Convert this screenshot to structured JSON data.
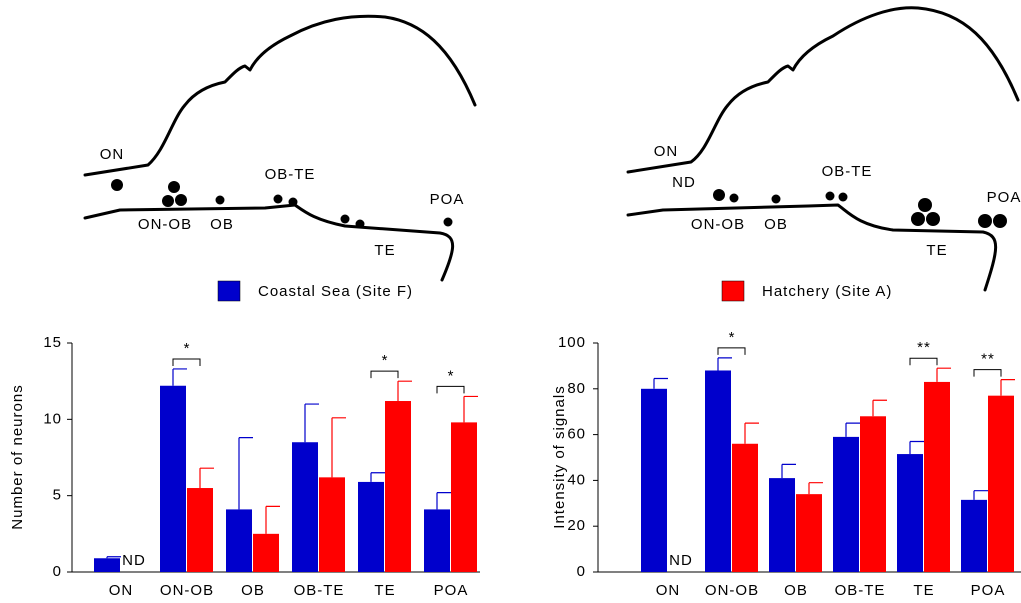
{
  "diagrams": [
    {
      "labels": [
        "ON",
        "ON-OB",
        "OB",
        "OB-TE",
        "TE",
        "POA"
      ]
    },
    {
      "labels": [
        "ON",
        "ND",
        "ON-OB",
        "OB",
        "OB-TE",
        "TE",
        "POA"
      ]
    }
  ],
  "chart_data": [
    {
      "type": "bar",
      "y_label": "Number of neurons",
      "categories": [
        "ON",
        "ON-OB",
        "OB",
        "OB-TE",
        "TE",
        "POA"
      ],
      "series": [
        {
          "name": "Coastal Sea (Site F)",
          "color": "#0000cc",
          "values": [
            0.9,
            12.2,
            4.1,
            8.5,
            5.9,
            4.1
          ],
          "errors": [
            0.1,
            1.1,
            4.7,
            2.5,
            0.6,
            1.1
          ]
        },
        {
          "name": "Hatchery (Site A)",
          "color": "#ff0000",
          "values": [
            null,
            5.5,
            2.5,
            6.2,
            11.2,
            9.8
          ],
          "errors": [
            null,
            1.3,
            1.8,
            3.9,
            1.3,
            1.7
          ],
          "value_labels": [
            "ND",
            null,
            null,
            null,
            null,
            null
          ]
        }
      ],
      "significance": [
        null,
        "*",
        null,
        null,
        "*",
        "*"
      ],
      "ylim": [
        0,
        15
      ],
      "yticks": [
        0,
        5,
        10,
        15
      ]
    },
    {
      "type": "bar",
      "y_label": "Intensity of signals",
      "categories": [
        "ON",
        "ON-OB",
        "OB",
        "OB-TE",
        "TE",
        "POA"
      ],
      "series": [
        {
          "color": "#0000cc",
          "values": [
            80,
            88,
            41,
            59,
            51.5,
            31.5
          ],
          "errors": [
            4.5,
            5.5,
            6,
            6,
            5.5,
            4
          ]
        },
        {
          "color": "#ff0000",
          "values": [
            null,
            56,
            34,
            68,
            83,
            77
          ],
          "errors": [
            null,
            9,
            5,
            7,
            6,
            7
          ],
          "value_labels": [
            "ND",
            null,
            null,
            null,
            null,
            null
          ]
        }
      ],
      "significance": [
        null,
        "*",
        null,
        null,
        "**",
        "**"
      ],
      "ylim": [
        0,
        100
      ],
      "yticks": [
        0,
        20,
        40,
        60,
        80,
        100
      ]
    }
  ]
}
